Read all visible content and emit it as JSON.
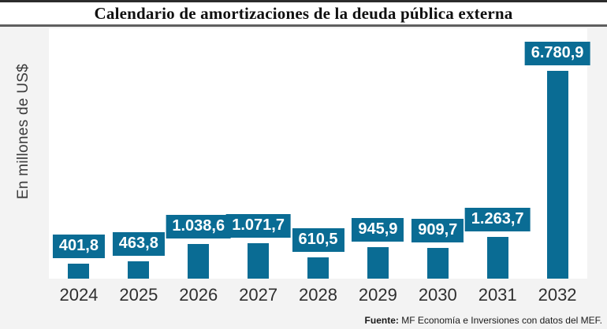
{
  "title": "Calendario de amortizaciones de la deuda pública externa",
  "chart_data": {
    "type": "bar",
    "title": "Calendario de amortizaciones de la deuda pública externa",
    "categories": [
      "2024",
      "2025",
      "2026",
      "2027",
      "2028",
      "2029",
      "2030",
      "2031",
      "2032"
    ],
    "values": [
      401.8,
      463.8,
      1038.6,
      1071.7,
      610.5,
      945.9,
      909.7,
      1263.7,
      6780.9
    ],
    "value_labels": [
      "401,8",
      "463,8",
      "1.038,6",
      "1.071,7",
      "610,5",
      "945,9",
      "909,7",
      "1.263,7",
      "6.780,9"
    ],
    "xlabel": "",
    "ylabel": "En millones de US$",
    "ylim": [
      0,
      7000
    ],
    "grid": false,
    "legend": false,
    "bar_color": "#0a6c94",
    "value_label_text_color": "#ffffff"
  },
  "footer": {
    "source_label": "Fuente:",
    "source_text": " MF Economía e Inversiones con datos del MEF."
  }
}
